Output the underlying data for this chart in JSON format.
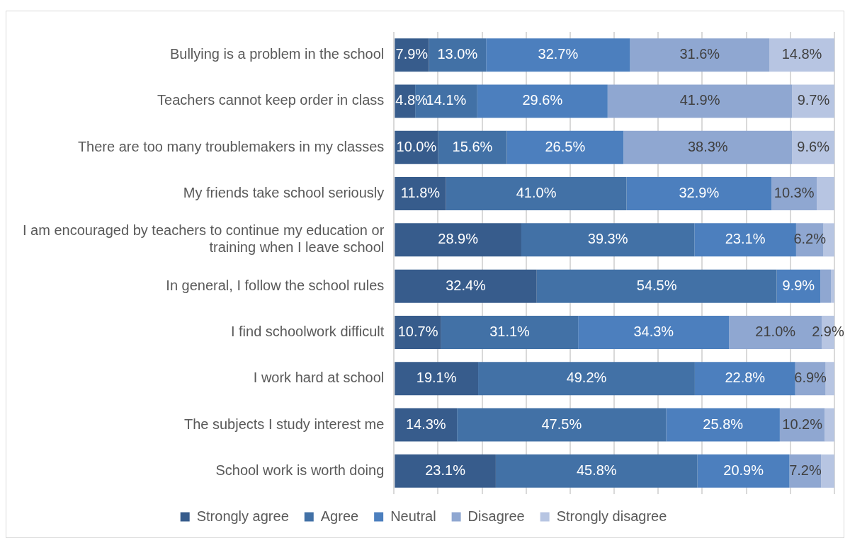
{
  "chart_data": {
    "type": "bar",
    "orientation": "horizontal",
    "stacked": true,
    "categories": [
      "Bullying is a problem in the school",
      "Teachers cannot keep order in class",
      "There are too many troublemakers in my classes",
      "My friends take school seriously",
      "I am encouraged by teachers to continue my education or training when I leave school",
      "In general, I follow the school rules",
      "I find schoolwork difficult",
      "I work hard at school",
      "The subjects I study interest me",
      "School work is worth doing"
    ],
    "series": [
      {
        "name": "Strongly agree",
        "color": "#375c8c",
        "values": [
          7.9,
          4.8,
          10.0,
          11.8,
          28.9,
          32.4,
          10.7,
          19.1,
          14.3,
          23.1
        ],
        "value_labels": [
          "7.9%",
          "4.8%",
          "10.0%",
          "11.8%",
          "28.9%",
          "32.4%",
          "10.7%",
          "19.1%",
          "14.3%",
          "23.1%"
        ]
      },
      {
        "name": "Agree",
        "color": "#4271a6",
        "values": [
          13.0,
          14.1,
          15.6,
          41.0,
          39.3,
          54.5,
          31.1,
          49.2,
          47.5,
          45.8
        ],
        "value_labels": [
          "13.0%",
          "14.1%",
          "15.6%",
          "41.0%",
          "39.3%",
          "54.5%",
          "31.1%",
          "49.2%",
          "47.5%",
          "45.8%"
        ]
      },
      {
        "name": "Neutral",
        "color": "#4c7fbe",
        "values": [
          32.7,
          29.6,
          26.5,
          32.9,
          23.1,
          9.9,
          34.3,
          22.8,
          25.8,
          20.9
        ],
        "value_labels": [
          "32.7%",
          "29.6%",
          "26.5%",
          "32.9%",
          "23.1%",
          "9.9%",
          "34.3%",
          "22.8%",
          "25.8%",
          "20.9%"
        ]
      },
      {
        "name": "Disagree",
        "color": "#8fa7d1",
        "values": [
          31.6,
          41.9,
          38.3,
          10.3,
          6.2,
          2.4,
          21.0,
          6.9,
          10.2,
          7.2
        ],
        "value_labels": [
          "31.6%",
          "41.9%",
          "38.3%",
          "10.3%",
          "6.2%",
          null,
          "21.0%",
          "6.9%",
          "10.2%",
          "7.2%"
        ]
      },
      {
        "name": "Strongly disagree",
        "color": "#b7c5e2",
        "values": [
          14.8,
          9.7,
          9.6,
          4.0,
          2.5,
          0.8,
          2.9,
          2.0,
          2.2,
          3.0
        ],
        "value_labels": [
          "14.8%",
          "9.7%",
          "9.6%",
          null,
          null,
          null,
          "2.9%",
          null,
          null,
          null
        ]
      }
    ],
    "xlim": [
      0,
      100
    ],
    "xticks": [
      {
        "value": 0,
        "label": null
      },
      {
        "value": 10,
        "label": null
      },
      {
        "value": 20,
        "label": null
      },
      {
        "value": 30,
        "label": null
      },
      {
        "value": 40,
        "label": null
      },
      {
        "value": 50,
        "label": null
      },
      {
        "value": 60,
        "label": null
      },
      {
        "value": 70,
        "label": null
      },
      {
        "value": 80,
        "label": null
      },
      {
        "value": 90,
        "label": null
      },
      {
        "value": 100,
        "label": null
      }
    ],
    "tick_labels": "y",
    "grid": "x",
    "legend": "bottom"
  }
}
